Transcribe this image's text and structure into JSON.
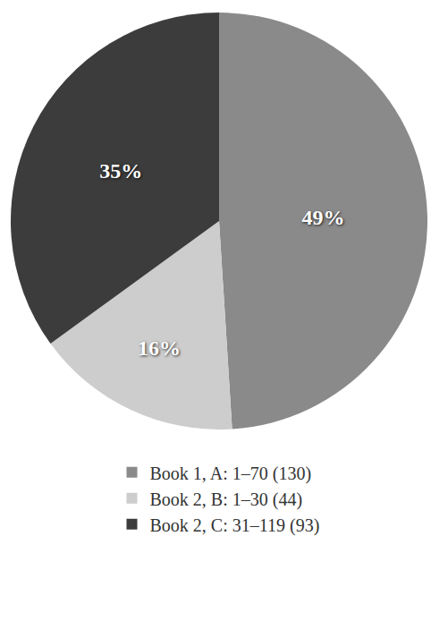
{
  "chart_data": {
    "type": "pie",
    "categories": [
      "Book 1, A: 1–70 (130)",
      "Book 2, B: 1–30 (44)",
      "Book 2, C: 31–119 (93)"
    ],
    "values": [
      49,
      16,
      35
    ],
    "value_labels": [
      "49%",
      "16%",
      "35%"
    ],
    "colors": [
      "#8a8a8a",
      "#cdcdcd",
      "#3c3c3c"
    ],
    "data_labels": true,
    "legend": "bottom"
  }
}
